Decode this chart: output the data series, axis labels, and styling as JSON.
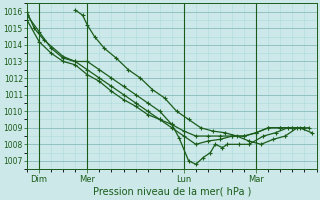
{
  "title": "Pression niveau de la mer( hPa )",
  "bg_color": "#cce8e8",
  "grid_major_color": "#88bbbb",
  "grid_minor_color": "#aadddd",
  "line_color": "#1a5c1a",
  "ylim": [
    1006.5,
    1016.5
  ],
  "yticks": [
    1007,
    1008,
    1009,
    1010,
    1011,
    1012,
    1013,
    1014,
    1015,
    1016
  ],
  "day_labels": [
    "Dim",
    "Mer",
    "Lun",
    "Mar"
  ],
  "day_positions": [
    0.5,
    2.5,
    6.5,
    9.5
  ],
  "xlim": [
    0,
    12
  ],
  "series": [
    [
      [
        0.0,
        1016.0
      ],
      [
        0.3,
        1015.0
      ],
      [
        0.7,
        1014.3
      ],
      [
        1.5,
        1013.3
      ],
      [
        2.0,
        1013.0
      ],
      [
        2.5,
        1013.0
      ],
      [
        3.0,
        1012.5
      ],
      [
        3.5,
        1012.0
      ],
      [
        4.0,
        1011.5
      ],
      [
        4.5,
        1011.0
      ],
      [
        5.0,
        1010.5
      ],
      [
        5.5,
        1010.0
      ],
      [
        6.0,
        1009.2
      ],
      [
        6.3,
        1008.4
      ],
      [
        6.7,
        1007.0
      ],
      [
        7.0,
        1006.8
      ],
      [
        7.3,
        1007.2
      ],
      [
        7.6,
        1007.5
      ],
      [
        7.8,
        1008.0
      ],
      [
        8.1,
        1007.8
      ],
      [
        8.3,
        1008.0
      ],
      [
        8.8,
        1008.0
      ],
      [
        9.2,
        1008.0
      ],
      [
        9.8,
        1008.5
      ],
      [
        10.3,
        1008.7
      ],
      [
        10.8,
        1009.0
      ],
      [
        11.3,
        1009.0
      ],
      [
        11.8,
        1008.7
      ]
    ],
    [
      [
        2.0,
        1016.1
      ],
      [
        2.3,
        1015.8
      ],
      [
        2.5,
        1015.2
      ],
      [
        2.8,
        1014.5
      ],
      [
        3.2,
        1013.8
      ],
      [
        3.7,
        1013.2
      ],
      [
        4.2,
        1012.5
      ],
      [
        4.7,
        1012.0
      ],
      [
        5.2,
        1011.3
      ],
      [
        5.7,
        1010.8
      ],
      [
        6.2,
        1010.0
      ],
      [
        6.7,
        1009.5
      ],
      [
        7.2,
        1009.0
      ],
      [
        7.7,
        1008.8
      ],
      [
        8.2,
        1008.7
      ],
      [
        8.7,
        1008.5
      ],
      [
        9.2,
        1008.2
      ],
      [
        9.7,
        1008.0
      ],
      [
        10.2,
        1008.3
      ],
      [
        10.7,
        1008.5
      ],
      [
        11.2,
        1009.0
      ],
      [
        11.7,
        1009.0
      ]
    ],
    [
      [
        0.0,
        1015.8
      ],
      [
        0.5,
        1014.8
      ],
      [
        1.0,
        1013.8
      ],
      [
        1.5,
        1013.2
      ],
      [
        2.0,
        1013.0
      ],
      [
        2.5,
        1012.5
      ],
      [
        3.0,
        1012.0
      ],
      [
        3.5,
        1011.5
      ],
      [
        4.0,
        1011.0
      ],
      [
        4.5,
        1010.5
      ],
      [
        5.0,
        1010.0
      ],
      [
        5.5,
        1009.5
      ],
      [
        6.0,
        1009.0
      ],
      [
        6.5,
        1008.5
      ],
      [
        7.0,
        1008.0
      ],
      [
        7.5,
        1008.2
      ],
      [
        8.0,
        1008.3
      ],
      [
        8.5,
        1008.5
      ],
      [
        9.0,
        1008.5
      ],
      [
        9.5,
        1008.7
      ],
      [
        10.0,
        1009.0
      ],
      [
        10.5,
        1009.0
      ],
      [
        11.0,
        1009.0
      ],
      [
        11.5,
        1009.0
      ]
    ],
    [
      [
        0.0,
        1015.5
      ],
      [
        0.5,
        1014.2
      ],
      [
        1.0,
        1013.5
      ],
      [
        1.5,
        1013.0
      ],
      [
        2.0,
        1012.8
      ],
      [
        2.5,
        1012.2
      ],
      [
        3.0,
        1011.8
      ],
      [
        3.5,
        1011.2
      ],
      [
        4.0,
        1010.7
      ],
      [
        4.5,
        1010.3
      ],
      [
        5.0,
        1009.8
      ],
      [
        5.5,
        1009.5
      ],
      [
        6.0,
        1009.2
      ],
      [
        6.5,
        1008.8
      ],
      [
        7.0,
        1008.5
      ],
      [
        7.5,
        1008.5
      ],
      [
        8.0,
        1008.5
      ],
      [
        8.5,
        1008.5
      ],
      [
        9.0,
        1008.5
      ],
      [
        9.5,
        1008.7
      ],
      [
        10.0,
        1009.0
      ],
      [
        10.5,
        1009.0
      ],
      [
        11.0,
        1009.0
      ],
      [
        11.5,
        1009.0
      ]
    ]
  ]
}
